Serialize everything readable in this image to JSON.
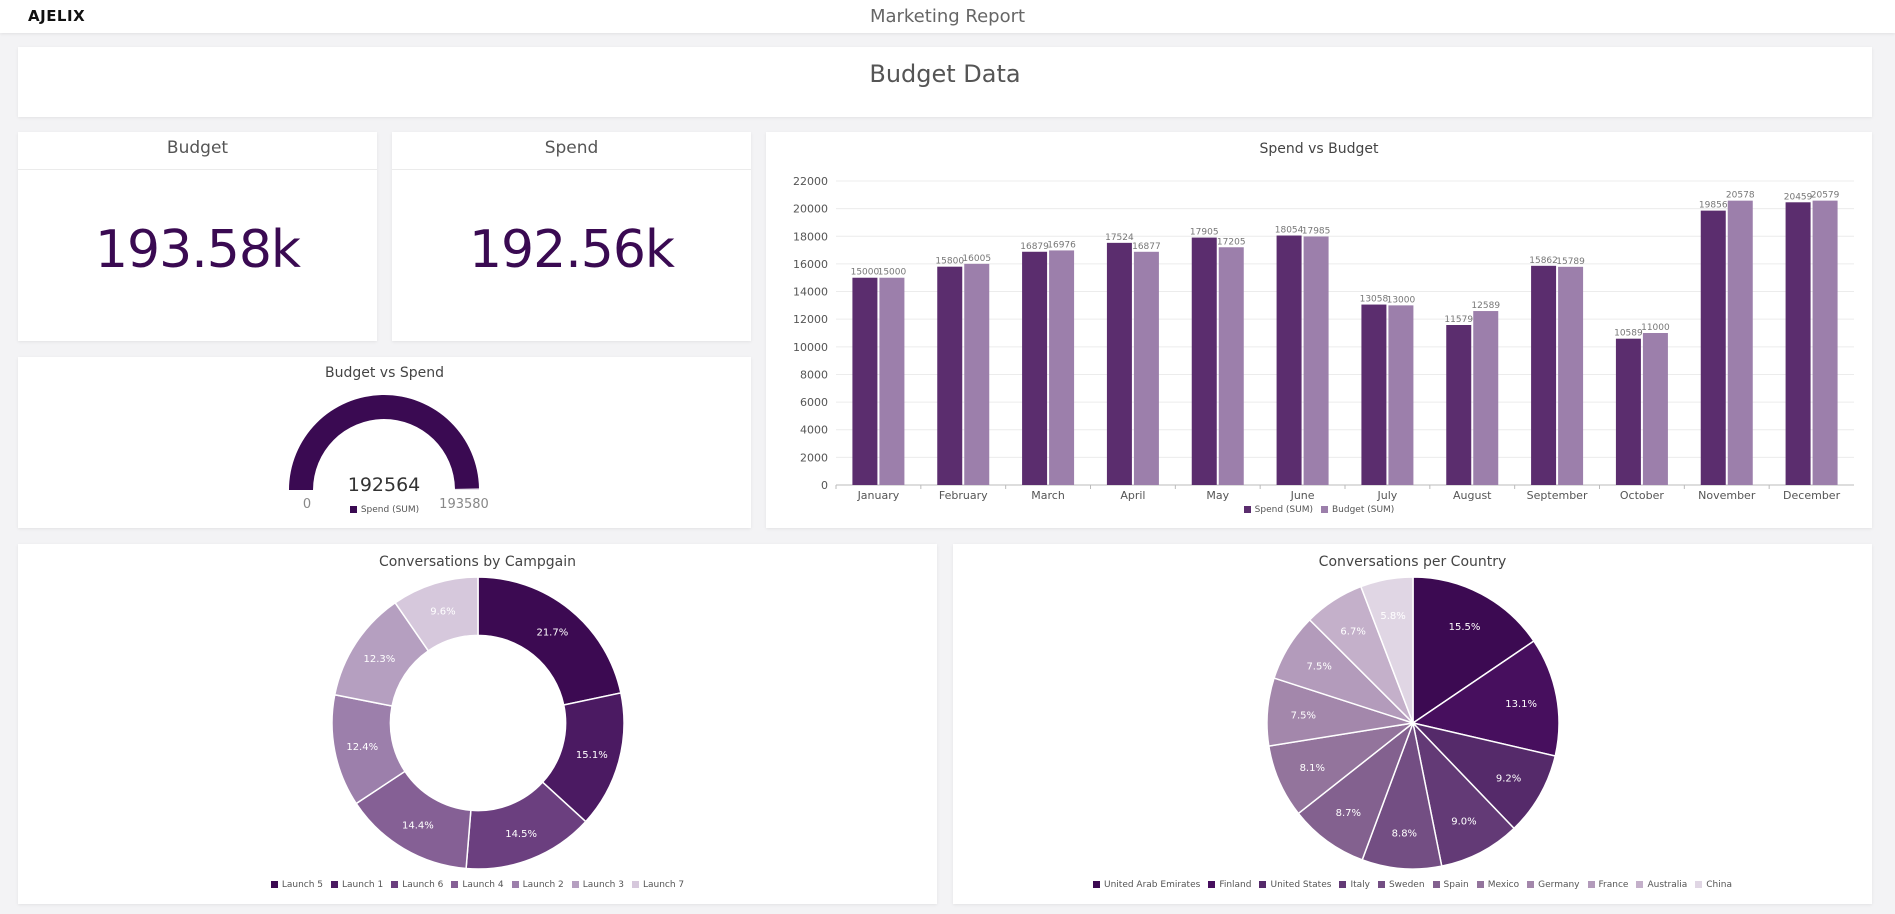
{
  "header": {
    "logo": "AJELIX",
    "report_title": "Marketing Report"
  },
  "page_title": "Budget Data",
  "kpis": [
    {
      "title": "Budget",
      "value": "193.58k"
    },
    {
      "title": "Spend",
      "value": "192.56k"
    }
  ],
  "colors": {
    "spend": "#5b2d6e",
    "budget": "#9c7fab",
    "gauge": "#3a0a52",
    "campaign_palette": [
      "#3c0a52",
      "#4b1a62",
      "#6b3f7f",
      "#856095",
      "#9c7fab",
      "#b59fc0",
      "#d6c8dc"
    ],
    "country_palette": [
      "#3c0a52",
      "#470f5e",
      "#552a6a",
      "#633a76",
      "#734e83",
      "#83618f",
      "#93749c",
      "#a387ab",
      "#b39bbb",
      "#c4b0ca",
      "#e0d6e4"
    ]
  },
  "gauge": {
    "title": "Budget vs Spend",
    "value": "192564",
    "min_label": "0",
    "max_label": "193580",
    "value_num": 192564,
    "max_num": 193580,
    "legend": "Spend (SUM)"
  },
  "chart_data": [
    {
      "type": "bar",
      "title": "Spend vs Budget",
      "categories": [
        "January",
        "February",
        "March",
        "April",
        "May",
        "June",
        "July",
        "August",
        "September",
        "October",
        "November",
        "December"
      ],
      "series": [
        {
          "name": "Spend (SUM)",
          "values": [
            15000,
            15800,
            16879,
            17524,
            17905,
            18054,
            13058,
            11579,
            15862,
            10589,
            19856,
            20459
          ]
        },
        {
          "name": "Budget (SUM)",
          "values": [
            15000,
            16005,
            16976,
            16877,
            17205,
            17985,
            13000,
            12589,
            15789,
            11000,
            20578,
            20579
          ]
        }
      ],
      "ylim": [
        0,
        22000
      ],
      "yticks": [
        "0",
        "2000",
        "4000",
        "6000",
        "8000",
        "10000",
        "12000",
        "14000",
        "16000",
        "18000",
        "20000",
        "22000"
      ],
      "xlabel": "",
      "ylabel": ""
    },
    {
      "type": "pie",
      "title": "Conversations by Campgain",
      "hole": 0.6,
      "labels": [
        "Launch 5",
        "Launch 1",
        "Launch 6",
        "Launch 4",
        "Launch 2",
        "Launch 3",
        "Launch 7"
      ],
      "values": [
        21.7,
        15.1,
        14.5,
        14.4,
        12.4,
        12.3,
        9.6
      ],
      "value_labels": [
        "21.7%",
        "15.1%",
        "14.5%",
        "14.4%",
        "12.4%",
        "12.3%",
        "9.6%"
      ]
    },
    {
      "type": "pie",
      "title": "Conversations per Country",
      "hole": 0,
      "labels": [
        "United Arab Emirates",
        "Finland",
        "United States",
        "Italy",
        "Sweden",
        "Spain",
        "Mexico",
        "Germany",
        "France",
        "Australia",
        "China"
      ],
      "values": [
        15.5,
        13.1,
        9.2,
        9.0,
        8.8,
        8.7,
        8.1,
        7.5,
        7.5,
        6.7,
        5.8
      ],
      "value_labels": [
        "15.5%",
        "13.1%",
        "9.2%",
        "9.0%",
        "8.8%",
        "8.7%",
        "8.1%",
        "7.5%",
        "7.5%",
        "6.7%",
        "5.8%"
      ]
    }
  ]
}
